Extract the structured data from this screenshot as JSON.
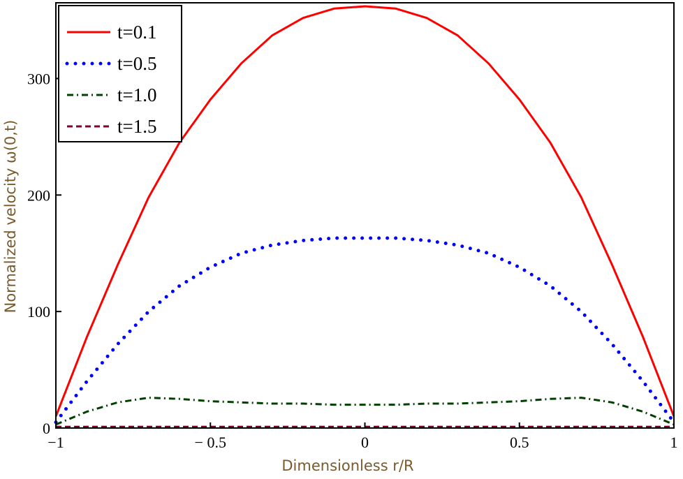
{
  "chart_data": {
    "type": "line",
    "xlabel": "Dimensionless r/R",
    "ylabel": "Normalized velocity ω(0,t)",
    "xlim": [
      -1,
      1
    ],
    "ylim": [
      0,
      365
    ],
    "xticks": [
      -1,
      -0.5,
      0,
      0.5,
      1
    ],
    "xtick_labels": [
      "−1",
      "− 0.5",
      "0",
      "0.5",
      "1"
    ],
    "yticks": [
      0,
      100,
      200,
      300
    ],
    "ytick_labels": [
      "0",
      "100",
      "200",
      "300"
    ],
    "grid": false,
    "legend_position": "top-left",
    "x": [
      -1.0,
      -0.9,
      -0.8,
      -0.7,
      -0.6,
      -0.5,
      -0.4,
      -0.3,
      -0.2,
      -0.1,
      0.0,
      0.1,
      0.2,
      0.3,
      0.4,
      0.5,
      0.6,
      0.7,
      0.8,
      0.9,
      1.0
    ],
    "series": [
      {
        "name": "t=0.1",
        "color": "#ff0000",
        "style": "solid",
        "values": [
          10,
          78,
          140,
          198,
          245,
          282,
          313,
          337,
          352,
          360,
          362,
          360,
          352,
          337,
          313,
          282,
          245,
          198,
          140,
          78,
          10
        ]
      },
      {
        "name": "t=0.5",
        "color": "#0000ff",
        "style": "dotted",
        "values": [
          5,
          40,
          72,
          100,
          122,
          138,
          150,
          157,
          161,
          163,
          163,
          163,
          161,
          157,
          150,
          138,
          122,
          100,
          72,
          40,
          5
        ]
      },
      {
        "name": "t=1.0",
        "color": "#004000",
        "style": "dashdot",
        "values": [
          3,
          14,
          22,
          26,
          25,
          23,
          22,
          21,
          21,
          20,
          20,
          20,
          21,
          21,
          22,
          23,
          25,
          26,
          22,
          14,
          3
        ]
      },
      {
        "name": "t=1.5",
        "color": "#7f0033",
        "style": "dashed",
        "values": [
          1,
          1,
          1,
          1,
          1,
          1,
          1,
          1,
          1,
          1,
          1,
          1,
          1,
          1,
          1,
          1,
          1,
          1,
          1,
          1,
          1
        ]
      }
    ]
  }
}
